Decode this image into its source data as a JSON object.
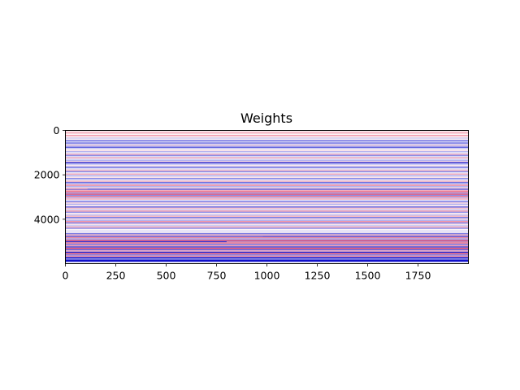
{
  "chart_data": {
    "type": "heatmap",
    "title": "Weights",
    "xlabel": "",
    "ylabel": "",
    "xlim": [
      0,
      2000
    ],
    "ylim": [
      0,
      6000
    ],
    "y_inverted": true,
    "x_ticks": [
      0,
      250,
      500,
      750,
      1000,
      1250,
      1500,
      1750
    ],
    "x_tick_labels": [
      "0",
      "250",
      "500",
      "750",
      "1000",
      "1250",
      "1500",
      "1750"
    ],
    "y_ticks": [
      0,
      2000,
      4000
    ],
    "y_tick_labels": [
      "0",
      "2000",
      "4000"
    ],
    "colormap": {
      "low": "#0000c8",
      "mid": "#ffffff",
      "high": "#e0143c"
    },
    "grid": false,
    "legend": "none",
    "rows": [
      {
        "y": 0,
        "h": 60,
        "v": 0.06
      },
      {
        "y": 60,
        "h": 90,
        "v": 0.3
      },
      {
        "y": 150,
        "h": 60,
        "v": 0.05
      },
      {
        "y": 210,
        "h": 40,
        "v": 0.55
      },
      {
        "y": 250,
        "h": 80,
        "v": 0.12
      },
      {
        "y": 330,
        "h": 40,
        "v": -0.25
      },
      {
        "y": 370,
        "h": 60,
        "v": 0.06
      },
      {
        "y": 430,
        "h": 70,
        "v": -0.5
      },
      {
        "y": 500,
        "h": 50,
        "v": -0.15
      },
      {
        "y": 550,
        "h": 40,
        "v": -0.7
      },
      {
        "y": 590,
        "h": 60,
        "v": -0.2
      },
      {
        "y": 650,
        "h": 40,
        "v": 0.25
      },
      {
        "y": 690,
        "h": 50,
        "v": -0.35
      },
      {
        "y": 740,
        "h": 60,
        "v": -0.6
      },
      {
        "y": 800,
        "h": 60,
        "v": -0.1
      },
      {
        "y": 860,
        "h": 70,
        "v": 0.12
      },
      {
        "y": 930,
        "h": 50,
        "v": -0.3
      },
      {
        "y": 980,
        "h": 60,
        "v": -0.12
      },
      {
        "y": 1040,
        "h": 60,
        "v": 0.3
      },
      {
        "y": 1100,
        "h": 50,
        "v": -0.5
      },
      {
        "y": 1150,
        "h": 60,
        "v": -0.15
      },
      {
        "y": 1210,
        "h": 50,
        "v": 0.4
      },
      {
        "y": 1260,
        "h": 60,
        "v": -0.1
      },
      {
        "y": 1320,
        "h": 60,
        "v": -0.3
      },
      {
        "y": 1380,
        "h": 50,
        "v": 0.18
      },
      {
        "y": 1430,
        "h": 60,
        "v": -0.85
      },
      {
        "y": 1490,
        "h": 70,
        "v": -0.2
      },
      {
        "y": 1560,
        "h": 60,
        "v": 0.1
      },
      {
        "y": 1620,
        "h": 80,
        "v": -0.45
      },
      {
        "y": 1700,
        "h": 60,
        "v": -0.12
      },
      {
        "y": 1760,
        "h": 70,
        "v": 0.25
      },
      {
        "y": 1830,
        "h": 50,
        "v": -0.55
      },
      {
        "y": 1880,
        "h": 60,
        "v": -0.08
      },
      {
        "y": 1940,
        "h": 60,
        "v": 0.35
      },
      {
        "y": 2000,
        "h": 80,
        "v": -0.25
      },
      {
        "y": 2080,
        "h": 60,
        "v": 0.12
      },
      {
        "y": 2140,
        "h": 60,
        "v": -0.45
      },
      {
        "y": 2200,
        "h": 60,
        "v": -0.12
      },
      {
        "y": 2260,
        "h": 60,
        "v": 0.3
      },
      {
        "y": 2320,
        "h": 60,
        "v": -0.55
      },
      {
        "y": 2380,
        "h": 60,
        "v": -0.2
      },
      {
        "y": 2440,
        "h": 60,
        "v": 0.5
      },
      {
        "y": 2500,
        "h": 60,
        "v": -0.3
      },
      {
        "y": 2560,
        "h": 60,
        "v": 0.18
      },
      {
        "y": 2620,
        "h": 60,
        "v": -0.65
      },
      {
        "y": 2680,
        "h": 60,
        "v": 0.35
      },
      {
        "y": 2740,
        "h": 50,
        "v": 0.7
      },
      {
        "y": 2790,
        "h": 60,
        "v": -0.35
      },
      {
        "y": 2850,
        "h": 50,
        "v": 0.8
      },
      {
        "y": 2900,
        "h": 50,
        "v": -0.45
      },
      {
        "y": 2950,
        "h": 50,
        "v": 0.6
      },
      {
        "y": 3000,
        "h": 60,
        "v": -0.25
      },
      {
        "y": 3060,
        "h": 60,
        "v": 0.35
      },
      {
        "y": 3120,
        "h": 60,
        "v": -0.12
      },
      {
        "y": 3180,
        "h": 60,
        "v": -0.5
      },
      {
        "y": 3240,
        "h": 60,
        "v": 0.18
      },
      {
        "y": 3300,
        "h": 60,
        "v": -0.3
      },
      {
        "y": 3360,
        "h": 60,
        "v": 0.08
      },
      {
        "y": 3420,
        "h": 60,
        "v": -0.6
      },
      {
        "y": 3480,
        "h": 60,
        "v": 0.25
      },
      {
        "y": 3540,
        "h": 60,
        "v": -0.18
      },
      {
        "y": 3600,
        "h": 60,
        "v": 0.4
      },
      {
        "y": 3660,
        "h": 60,
        "v": -0.4
      },
      {
        "y": 3720,
        "h": 60,
        "v": 0.1
      },
      {
        "y": 3780,
        "h": 60,
        "v": -0.25
      },
      {
        "y": 3840,
        "h": 60,
        "v": 0.3
      },
      {
        "y": 3900,
        "h": 60,
        "v": -0.55
      },
      {
        "y": 3960,
        "h": 60,
        "v": 0.15
      },
      {
        "y": 4020,
        "h": 60,
        "v": -0.3
      },
      {
        "y": 4080,
        "h": 60,
        "v": 0.45
      },
      {
        "y": 4140,
        "h": 60,
        "v": -0.5
      },
      {
        "y": 4200,
        "h": 60,
        "v": 0.12
      },
      {
        "y": 4260,
        "h": 60,
        "v": -0.2
      },
      {
        "y": 4320,
        "h": 60,
        "v": 0.35
      },
      {
        "y": 4380,
        "h": 60,
        "v": -0.45
      },
      {
        "y": 4440,
        "h": 60,
        "v": 0.04
      },
      {
        "y": 4500,
        "h": 60,
        "v": -0.15
      },
      {
        "y": 4560,
        "h": 60,
        "v": 0.05
      },
      {
        "y": 4620,
        "h": 60,
        "v": -0.55
      },
      {
        "y": 4680,
        "h": 60,
        "v": 0.3
      },
      {
        "y": 4740,
        "h": 60,
        "v": -0.7
      },
      {
        "y": 4800,
        "h": 60,
        "v": 0.5
      },
      {
        "y": 4860,
        "h": 60,
        "v": -0.35
      },
      {
        "y": 4920,
        "h": 60,
        "v": 0.65
      },
      {
        "y": 4980,
        "h": 60,
        "v": -0.8
      },
      {
        "y": 5040,
        "h": 60,
        "v": 0.55
      },
      {
        "y": 5100,
        "h": 60,
        "v": -0.5
      },
      {
        "y": 5160,
        "h": 60,
        "v": 0.4
      },
      {
        "y": 5220,
        "h": 60,
        "v": -0.7
      },
      {
        "y": 5280,
        "h": 60,
        "v": 0.7
      },
      {
        "y": 5340,
        "h": 60,
        "v": -0.6
      },
      {
        "y": 5400,
        "h": 60,
        "v": 0.35
      },
      {
        "y": 5460,
        "h": 60,
        "v": -0.85
      },
      {
        "y": 5520,
        "h": 60,
        "v": 0.6
      },
      {
        "y": 5580,
        "h": 60,
        "v": -0.5
      },
      {
        "y": 5640,
        "h": 60,
        "v": 0.45
      },
      {
        "y": 5700,
        "h": 60,
        "v": -0.9
      },
      {
        "y": 5760,
        "h": 60,
        "v": -0.4
      },
      {
        "y": 5820,
        "h": 60,
        "v": -0.95
      },
      {
        "y": 5880,
        "h": 40,
        "v": -1.0
      }
    ],
    "partial_rows": [
      {
        "y": 2620,
        "h": 25,
        "x0": 0,
        "x1": 110,
        "v": 0.5
      },
      {
        "y": 4760,
        "h": 30,
        "x0": 0,
        "x1": 980,
        "v": -0.6
      },
      {
        "y": 5000,
        "h": 40,
        "x0": 800,
        "x1": 2000,
        "v": 0.4
      }
    ]
  }
}
